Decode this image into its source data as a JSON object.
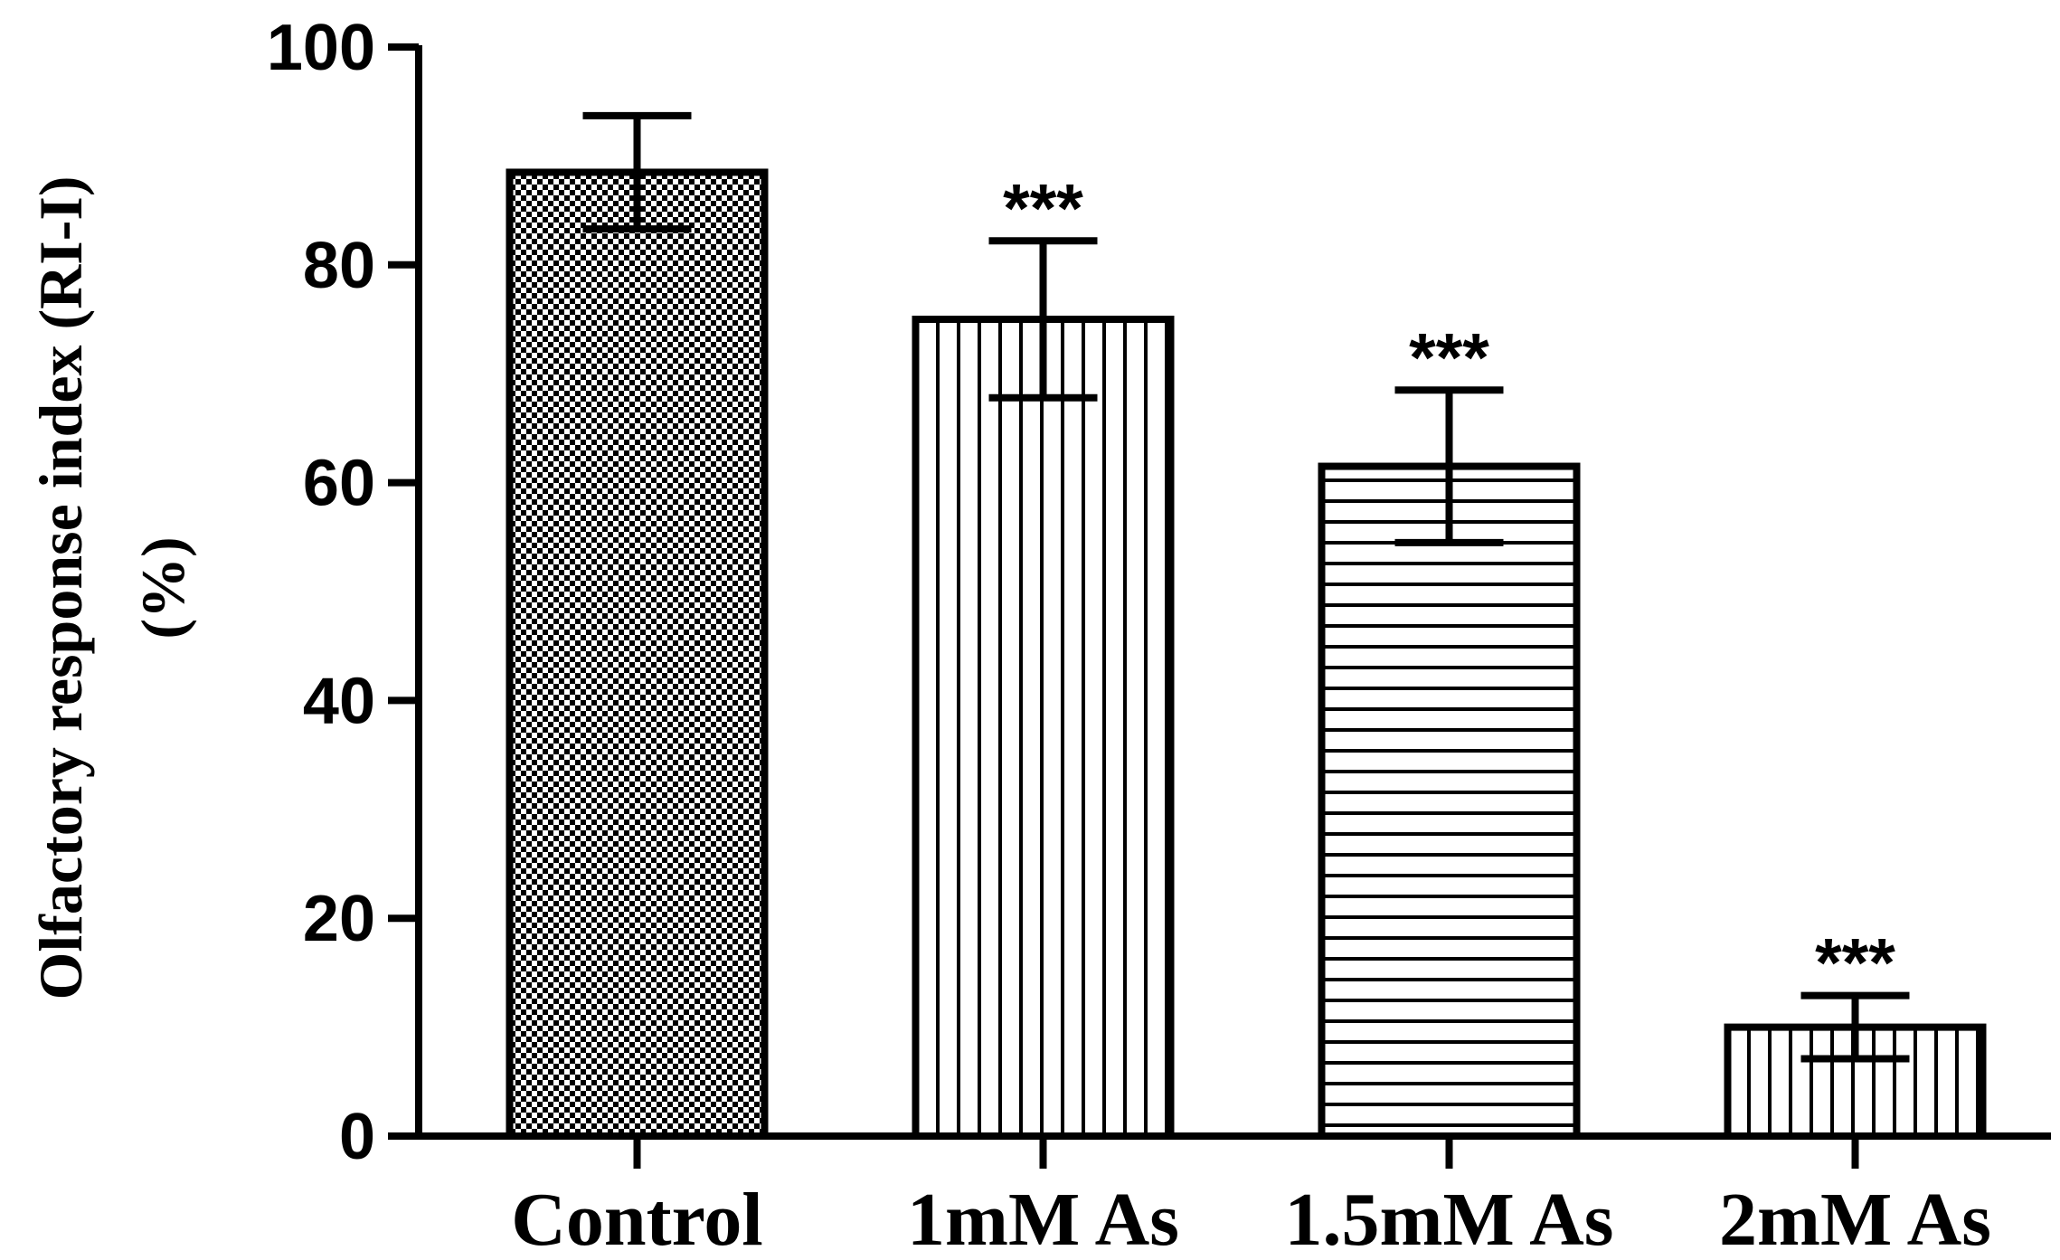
{
  "chart_data": {
    "type": "bar",
    "categories": [
      "Control",
      "1mM As",
      "1.5mM As",
      "2mM As"
    ],
    "values": [
      88.5,
      75,
      61.5,
      10
    ],
    "errors": [
      5.2,
      7.2,
      7.0,
      2.9
    ],
    "significance": [
      "",
      "***",
      "***",
      "***"
    ],
    "patterns": [
      "checker",
      "vertical",
      "horizontal",
      "vertical"
    ],
    "ylabel_line1": "Olfactory response index (RI-I)",
    "ylabel_line2": "(%)",
    "ylim": [
      0,
      100
    ],
    "yticks": [
      0,
      20,
      40,
      60,
      80,
      100
    ],
    "grid": false,
    "colors": {
      "ink": "#000000",
      "fill": "#ffffff"
    }
  }
}
